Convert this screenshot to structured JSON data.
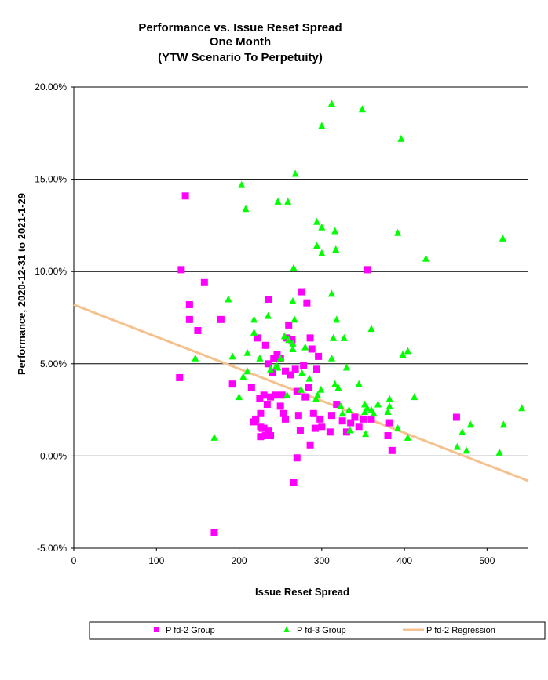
{
  "chart_data": {
    "type": "scatter",
    "title_lines": [
      "Performance vs. Issue Reset Spread",
      "One Month",
      "(YTW Scenario To Perpetuity)"
    ],
    "xlabel": "Issue  Reset  Spread",
    "ylabel": "Performance, 2020-12-31  to 2021-1-29",
    "xlim": [
      0,
      550
    ],
    "ylim": [
      -5,
      20
    ],
    "xticks": [
      0,
      100,
      200,
      300,
      400,
      500
    ],
    "yticks": [
      -5,
      0,
      5,
      10,
      15,
      20
    ],
    "xtick_labels": [
      "0",
      "100",
      "200",
      "300",
      "400",
      "500"
    ],
    "ytick_labels": [
      "-5.00%",
      "0.00%",
      "5.00%",
      "10.00%",
      "15.00%",
      "20.00%"
    ],
    "grid": "horizontal",
    "legend_position": "bottom",
    "series": [
      {
        "name": "P fd-2 Group",
        "marker": "square",
        "color": "#ff00ff",
        "points": [
          [
            130,
            10.1
          ],
          [
            135,
            14.1
          ],
          [
            140,
            8.2
          ],
          [
            140,
            7.4
          ],
          [
            150,
            6.8
          ],
          [
            158,
            9.4
          ],
          [
            128,
            4.25
          ],
          [
            178,
            7.4
          ],
          [
            192,
            3.9
          ],
          [
            215,
            3.7
          ],
          [
            218,
            1.85
          ],
          [
            222,
            6.4
          ],
          [
            225,
            3.1
          ],
          [
            226,
            2.3
          ],
          [
            228,
            1.5
          ],
          [
            230,
            3.3
          ],
          [
            232,
            6.0
          ],
          [
            234,
            2.8
          ],
          [
            236,
            8.5
          ],
          [
            238,
            3.2
          ],
          [
            240,
            4.5
          ],
          [
            242,
            5.3
          ],
          [
            235,
            5.0
          ],
          [
            246,
            5.5
          ],
          [
            250,
            5.3
          ],
          [
            252,
            3.3
          ],
          [
            254,
            2.3
          ],
          [
            256,
            4.6
          ],
          [
            258,
            6.4
          ],
          [
            260,
            7.1
          ],
          [
            262,
            4.4
          ],
          [
            264,
            6.3
          ],
          [
            266,
            -1.45
          ],
          [
            268,
            4.7
          ],
          [
            270,
            3.5
          ],
          [
            272,
            2.2
          ],
          [
            274,
            1.4
          ],
          [
            276,
            8.9
          ],
          [
            278,
            4.9
          ],
          [
            280,
            3.2
          ],
          [
            282,
            8.3
          ],
          [
            284,
            3.7
          ],
          [
            286,
            6.4
          ],
          [
            288,
            5.8
          ],
          [
            290,
            2.3
          ],
          [
            292,
            1.5
          ],
          [
            294,
            4.7
          ],
          [
            296,
            5.4
          ],
          [
            298,
            2.0
          ],
          [
            300,
            1.6
          ],
          [
            310,
            1.3
          ],
          [
            312,
            2.2
          ],
          [
            318,
            2.8
          ],
          [
            325,
            1.9
          ],
          [
            330,
            1.3
          ],
          [
            335,
            1.8
          ],
          [
            340,
            2.1
          ],
          [
            345,
            1.6
          ],
          [
            350,
            2.0
          ],
          [
            355,
            10.1
          ],
          [
            360,
            2.0
          ],
          [
            380,
            1.1
          ],
          [
            385,
            0.3
          ],
          [
            382,
            1.8
          ],
          [
            463,
            2.1
          ],
          [
            232,
            1.1
          ],
          [
            226,
            1.05
          ],
          [
            238,
            1.1
          ],
          [
            220,
            2.0
          ],
          [
            230,
            1.5
          ],
          [
            236,
            1.35
          ],
          [
            286,
            0.6
          ],
          [
            270,
            -0.1
          ],
          [
            256,
            2.0
          ],
          [
            250,
            2.7
          ],
          [
            170,
            -4.15
          ],
          [
            244,
            3.3
          ],
          [
            226,
            1.6
          ]
        ]
      },
      {
        "name": "P fd-3 Group",
        "marker": "triangle",
        "color": "#00ff00",
        "points": [
          [
            312,
            19.1
          ],
          [
            349,
            18.8
          ],
          [
            300,
            17.9
          ],
          [
            396,
            17.2
          ],
          [
            268,
            15.3
          ],
          [
            203,
            14.7
          ],
          [
            208,
            13.4
          ],
          [
            247,
            13.8
          ],
          [
            259,
            13.8
          ],
          [
            294,
            12.7
          ],
          [
            300,
            12.4
          ],
          [
            316,
            12.2
          ],
          [
            392,
            12.1
          ],
          [
            519,
            11.8
          ],
          [
            294,
            11.4
          ],
          [
            317,
            11.2
          ],
          [
            300,
            11.0
          ],
          [
            426,
            10.7
          ],
          [
            266,
            10.2
          ],
          [
            187,
            8.5
          ],
          [
            265,
            8.4
          ],
          [
            312,
            8.8
          ],
          [
            218,
            7.4
          ],
          [
            235,
            7.6
          ],
          [
            267,
            7.4
          ],
          [
            318,
            7.4
          ],
          [
            360,
            6.9
          ],
          [
            218,
            6.7
          ],
          [
            255,
            6.5
          ],
          [
            260,
            6.3
          ],
          [
            265,
            6.1
          ],
          [
            314,
            6.4
          ],
          [
            327,
            6.4
          ],
          [
            210,
            5.6
          ],
          [
            265,
            5.8
          ],
          [
            280,
            5.9
          ],
          [
            404,
            5.7
          ],
          [
            398,
            5.5
          ],
          [
            147,
            5.3
          ],
          [
            192,
            5.4
          ],
          [
            225,
            5.3
          ],
          [
            250,
            5.3
          ],
          [
            312,
            5.3
          ],
          [
            247,
            4.8
          ],
          [
            210,
            4.6
          ],
          [
            238,
            4.7
          ],
          [
            330,
            4.8
          ],
          [
            205,
            4.3
          ],
          [
            276,
            4.5
          ],
          [
            320,
            3.7
          ],
          [
            345,
            3.9
          ],
          [
            275,
            3.6
          ],
          [
            299,
            3.6
          ],
          [
            258,
            3.3
          ],
          [
            293,
            3.1
          ],
          [
            323,
            2.7
          ],
          [
            333,
            2.5
          ],
          [
            352,
            2.8
          ],
          [
            355,
            2.6
          ],
          [
            360,
            2.5
          ],
          [
            368,
            2.8
          ],
          [
            380,
            2.4
          ],
          [
            382,
            3.1
          ],
          [
            382,
            2.7
          ],
          [
            412,
            3.2
          ],
          [
            325,
            2.3
          ],
          [
            352,
            2.4
          ],
          [
            353,
            1.2
          ],
          [
            392,
            1.5
          ],
          [
            404,
            1.0
          ],
          [
            464,
            0.5
          ],
          [
            475,
            0.3
          ],
          [
            480,
            1.7
          ],
          [
            470,
            1.3
          ],
          [
            515,
            0.2
          ],
          [
            520,
            1.7
          ],
          [
            542,
            2.6
          ],
          [
            170,
            1.0
          ],
          [
            295,
            3.3
          ],
          [
            245,
            4.9
          ],
          [
            316,
            3.9
          ],
          [
            334,
            1.4
          ],
          [
            363,
            2.3
          ],
          [
            200,
            3.2
          ],
          [
            285,
            4.2
          ]
        ]
      }
    ],
    "regression": {
      "name": "P fd-2 Regression",
      "color": "#f5c28f",
      "x": [
        0,
        550
      ],
      "y": [
        8.2,
        -1.35
      ]
    }
  }
}
